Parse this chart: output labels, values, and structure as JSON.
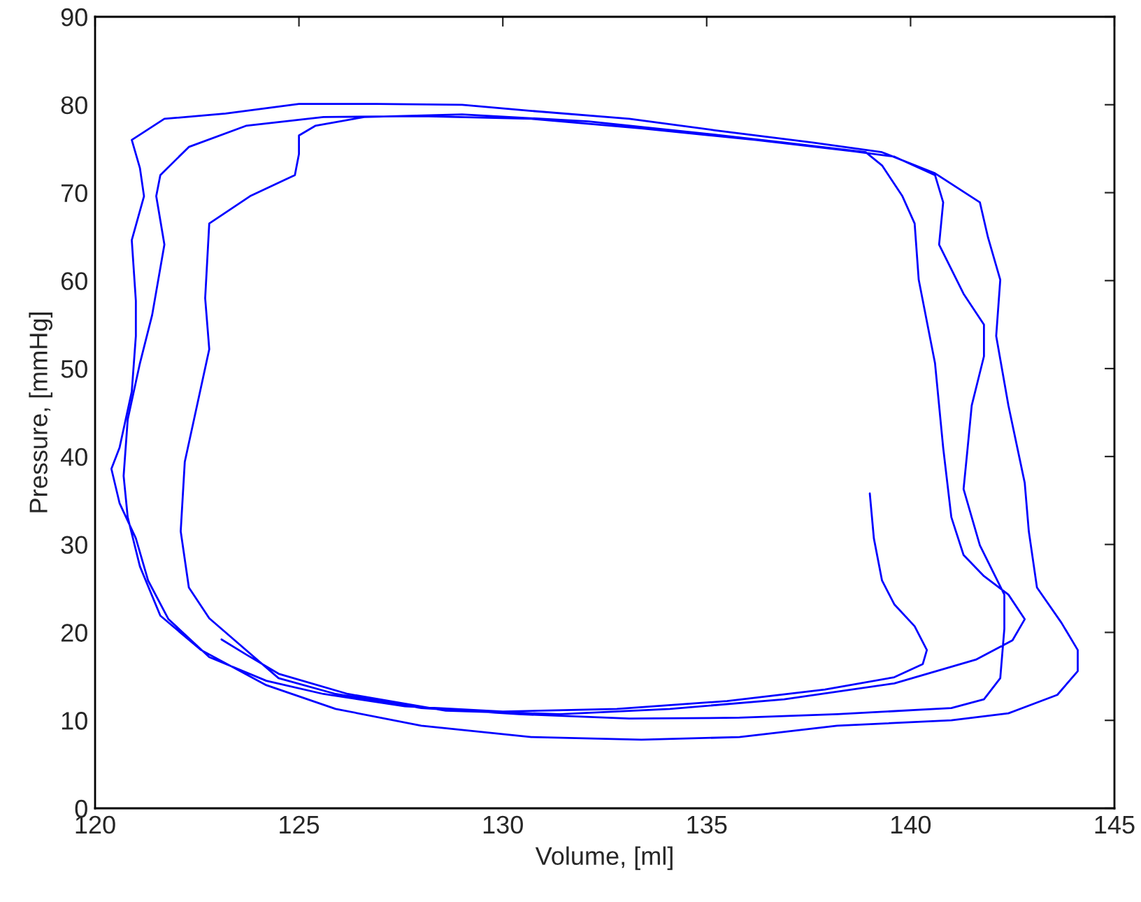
{
  "chart_data": {
    "type": "line",
    "xlabel": "Volume, [ml]",
    "ylabel": "Pressure, [mmHg]",
    "xlim": [
      120,
      145
    ],
    "xticks": [
      120,
      125,
      130,
      135,
      140,
      145
    ],
    "ylim": [
      0,
      90
    ],
    "yticks": [
      0,
      10,
      20,
      30,
      40,
      50,
      60,
      70,
      80,
      90
    ],
    "grid": false,
    "legend": false,
    "marker": "none",
    "line_style": "solid",
    "series": [
      {
        "color": "#0000ff",
        "x": [
          139.0,
          139.1,
          139.3,
          139.6,
          140.1,
          140.4,
          140.3,
          139.6,
          137.9,
          135.5,
          132.8,
          130.0,
          127.6,
          125.6,
          124.2,
          122.8,
          121.8,
          121.3,
          121.0,
          120.6,
          120.4,
          120.6,
          120.9,
          121.0,
          121.0,
          120.9,
          121.2,
          121.1,
          120.9,
          121.7,
          123.2,
          125.0,
          126.9,
          129.0,
          130.7,
          133.1,
          135.2,
          137.6,
          139.3,
          140.6,
          141.7,
          141.9,
          142.2,
          142.1,
          142.4,
          142.8,
          142.9,
          143.1,
          143.7,
          144.1,
          144.1,
          143.6,
          142.4,
          141.0,
          138.2,
          135.8,
          133.4,
          130.7,
          128.0,
          125.9,
          124.2,
          122.6,
          121.6,
          121.1,
          120.8,
          120.7,
          120.8,
          121.1,
          121.4,
          121.7,
          121.5,
          121.6,
          122.3,
          123.7,
          125.6,
          128.0,
          130.7,
          133.4,
          136.2,
          138.6,
          139.6,
          140.6,
          140.8,
          140.7,
          141.3,
          141.8,
          141.8,
          141.5,
          141.4,
          141.3,
          141.7,
          142.3,
          142.3,
          142.2,
          141.8,
          141.0,
          138.2,
          135.8,
          133.1,
          130.4,
          128.0,
          125.9,
          124.5,
          123.5,
          122.8,
          122.3,
          122.1,
          122.2,
          122.5,
          122.8,
          122.7,
          122.8,
          123.8,
          124.9,
          125.0,
          125.0,
          125.4,
          126.6,
          129.0,
          132.1,
          134.8,
          136.9,
          138.9,
          139.3,
          139.8,
          140.1,
          140.2,
          140.6,
          140.8,
          141.0,
          141.3,
          141.8,
          142.4,
          142.8,
          142.5,
          141.6,
          139.6,
          136.9,
          134.1,
          131.4,
          128.6,
          126.2,
          124.5,
          123.7,
          123.1
        ],
        "values": [
          35.8,
          30.7,
          25.9,
          23.2,
          20.7,
          18.0,
          16.4,
          14.9,
          13.5,
          12.2,
          11.3,
          11.0,
          11.6,
          13.0,
          14.5,
          17.2,
          21.5,
          25.9,
          30.7,
          34.7,
          38.6,
          41.0,
          47.4,
          53.7,
          57.7,
          64.6,
          69.6,
          72.8,
          76.0,
          78.4,
          79.0,
          80.1,
          80.1,
          80.0,
          79.3,
          78.4,
          77.1,
          75.7,
          74.6,
          72.2,
          68.9,
          64.9,
          60.1,
          53.7,
          45.8,
          37.0,
          31.5,
          25.1,
          21.1,
          18.0,
          15.6,
          12.9,
          10.8,
          10.0,
          9.4,
          8.1,
          7.8,
          8.1,
          9.4,
          11.3,
          14.0,
          18.0,
          21.9,
          27.5,
          33.1,
          37.8,
          44.2,
          50.6,
          56.1,
          64.1,
          69.6,
          72.0,
          75.2,
          77.6,
          78.6,
          78.7,
          78.4,
          77.3,
          76.0,
          74.7,
          74.1,
          72.0,
          68.9,
          64.1,
          58.5,
          55.0,
          51.4,
          45.8,
          41.0,
          36.3,
          29.9,
          24.3,
          20.4,
          14.8,
          12.4,
          11.4,
          10.7,
          10.3,
          10.2,
          10.7,
          11.4,
          13.0,
          14.8,
          18.8,
          21.6,
          25.1,
          31.5,
          39.4,
          45.8,
          52.2,
          58.0,
          66.5,
          69.6,
          72.0,
          74.4,
          76.5,
          77.6,
          78.6,
          78.9,
          78.1,
          76.8,
          75.7,
          74.6,
          73.1,
          69.6,
          66.5,
          60.1,
          50.6,
          41.0,
          33.1,
          28.8,
          26.4,
          24.3,
          21.5,
          19.1,
          16.9,
          14.2,
          12.4,
          11.3,
          10.7,
          11.1,
          13.0,
          15.3,
          17.5,
          19.2
        ]
      }
    ]
  }
}
